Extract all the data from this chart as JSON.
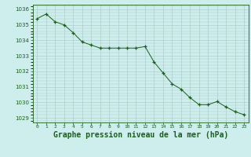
{
  "x": [
    0,
    1,
    2,
    3,
    4,
    5,
    6,
    7,
    8,
    9,
    10,
    11,
    12,
    13,
    14,
    15,
    16,
    17,
    18,
    19,
    20,
    21,
    22,
    23
  ],
  "y": [
    1035.4,
    1035.7,
    1035.2,
    1035.0,
    1034.5,
    1033.9,
    1033.7,
    1033.5,
    1033.5,
    1033.5,
    1033.5,
    1033.5,
    1033.6,
    1032.6,
    1031.9,
    1031.2,
    1030.85,
    1030.3,
    1029.85,
    1029.85,
    1030.05,
    1029.7,
    1029.4,
    1029.2
  ],
  "line_color": "#1a5e1a",
  "marker": "+",
  "marker_size": 3,
  "bg_color": "#cdeeed",
  "grid_color": "#b0ccc8",
  "ylabel_ticks": [
    1029,
    1030,
    1031,
    1032,
    1033,
    1034,
    1035,
    1036
  ],
  "xlabel": "Graphe pression niveau de la mer (hPa)",
  "xlabel_fontsize": 7,
  "ylim": [
    1028.7,
    1036.3
  ],
  "xlim": [
    -0.5,
    23.5
  ]
}
